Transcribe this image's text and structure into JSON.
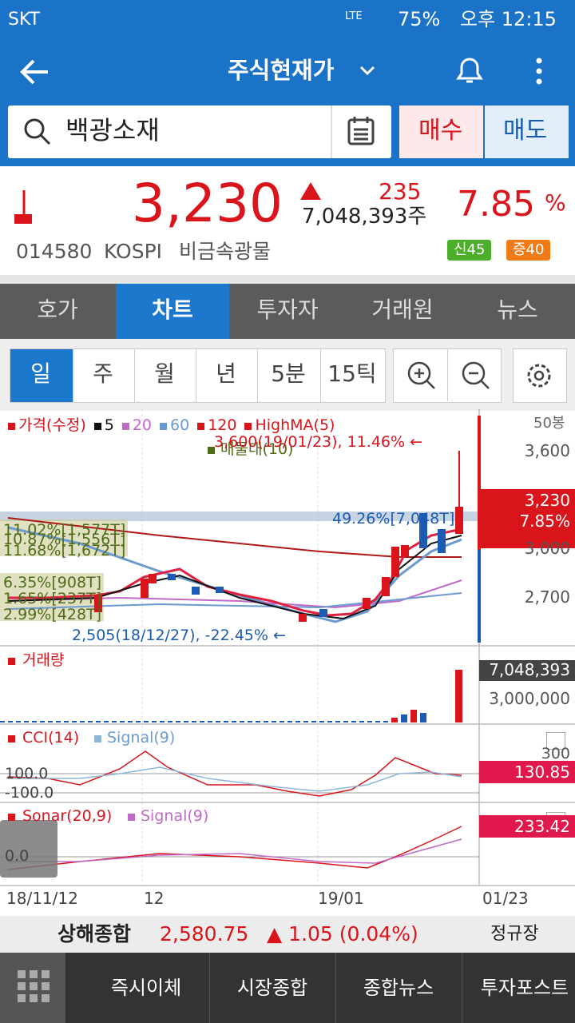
{
  "status": {
    "carrier": "SKT",
    "network": "LTE",
    "battery": "75%",
    "time": "오후 12:15"
  },
  "header": {
    "title": "주식현재가"
  },
  "search": {
    "query": "백광소재",
    "buy": "매수",
    "sell": "매도"
  },
  "quote": {
    "price": "3,230",
    "change": "235",
    "volume": "7,048,393주",
    "rate": "7.85",
    "rate_unit": "%",
    "code": "014580",
    "market": "KOSPI",
    "sector": "비금속광물",
    "badges": [
      "신45",
      "증40"
    ]
  },
  "tabs": [
    "호가",
    "차트",
    "투자자",
    "거래원",
    "뉴스"
  ],
  "periods": [
    "일",
    "주",
    "월",
    "년",
    "5분",
    "15틱"
  ],
  "chart": {
    "legend": [
      "가격(수정)",
      "5",
      "20",
      "60",
      "120",
      "HighMA(5)"
    ],
    "legend2": "매물대(10)",
    "bars": "50봉",
    "high_note": "3,600(19/01/23), 11.46% ←",
    "low_note": "2,505(18/12/27), -22.45% ←",
    "profile_top": "49.26%[7,048T]",
    "profile": [
      "11.02%[1,577T]",
      "10.87%[1,556T]",
      "11.68%[1,672T]",
      "6.35%[908T]",
      "1.65%[237T]",
      "2.99%[428T]"
    ],
    "price_axis": [
      "3,600",
      "3,000",
      "2,700"
    ],
    "current": "3,230",
    "current_rate": "7.85%",
    "volume_title": "거래량",
    "volume_current": "7,048,393",
    "volume_axis": "3,000,000",
    "cci_title": "CCI(14)",
    "cci_signal": "Signal(9)",
    "cci_axis": [
      "300",
      "100.0",
      "-100.0"
    ],
    "cci_current": "130.85",
    "sonar_title": "Sonar(20,9)",
    "sonar_signal": "Signal(9)",
    "sonar_axis": "0.0",
    "sonar_current": "233.42",
    "dates": [
      "18/11/12",
      "12",
      "19/01",
      "01/23"
    ]
  },
  "ticker": {
    "name": "상해종합",
    "value": "2,580.75",
    "change": "▲ 1.05 (0.04%)",
    "session": "정규장"
  },
  "nav": [
    "즉시이체",
    "시장종합",
    "종합뉴스",
    "투자포스트"
  ]
}
